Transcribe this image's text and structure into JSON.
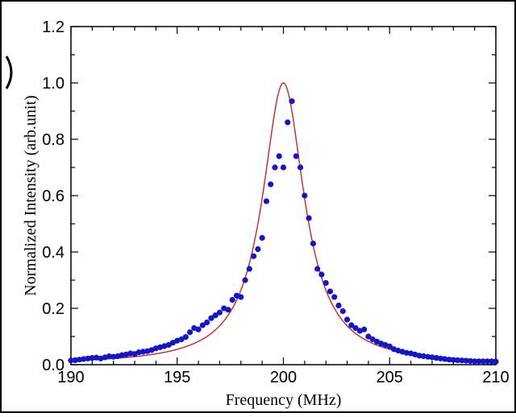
{
  "chart_data": {
    "type": "scatter",
    "title": "",
    "xlabel": "Frequency (MHz)",
    "ylabel": "Normalized Intensity (arb.unit)",
    "xlim": [
      190,
      210
    ],
    "ylim": [
      0.0,
      1.2
    ],
    "xticks": [
      190,
      195,
      200,
      205,
      210
    ],
    "xtick_labels": [
      "190",
      "195",
      "200",
      "205",
      "210"
    ],
    "yticks": [
      0.0,
      0.2,
      0.4,
      0.6,
      0.8,
      1.0,
      1.2
    ],
    "ytick_labels": [
      "0.0",
      "0.2",
      "0.4",
      "0.6",
      "0.8",
      "1.0",
      "1.2"
    ],
    "grid": false,
    "legend": "none",
    "colors": {
      "points": "#1515c8",
      "curve": "#c83232",
      "axes": "#000000"
    },
    "fit_curve": {
      "kind": "lorentzian",
      "center": 200.0,
      "hwhm": 1.2,
      "amplitude": 1.0
    },
    "points": [
      [
        190.0,
        0.015
      ],
      [
        190.2,
        0.016
      ],
      [
        190.4,
        0.018
      ],
      [
        190.6,
        0.02
      ],
      [
        190.8,
        0.022
      ],
      [
        191.0,
        0.024
      ],
      [
        191.2,
        0.025
      ],
      [
        191.4,
        0.022
      ],
      [
        191.6,
        0.026
      ],
      [
        191.8,
        0.03
      ],
      [
        192.0,
        0.028
      ],
      [
        192.2,
        0.03
      ],
      [
        192.4,
        0.034
      ],
      [
        192.6,
        0.036
      ],
      [
        192.8,
        0.04
      ],
      [
        193.0,
        0.038
      ],
      [
        193.2,
        0.044
      ],
      [
        193.4,
        0.046
      ],
      [
        193.6,
        0.048
      ],
      [
        193.8,
        0.052
      ],
      [
        194.0,
        0.058
      ],
      [
        194.2,
        0.062
      ],
      [
        194.4,
        0.066
      ],
      [
        194.6,
        0.07
      ],
      [
        194.8,
        0.078
      ],
      [
        195.0,
        0.085
      ],
      [
        195.2,
        0.09
      ],
      [
        195.4,
        0.098
      ],
      [
        195.6,
        0.115
      ],
      [
        195.8,
        0.13
      ],
      [
        196.0,
        0.125
      ],
      [
        196.2,
        0.14
      ],
      [
        196.4,
        0.15
      ],
      [
        196.6,
        0.165
      ],
      [
        196.8,
        0.175
      ],
      [
        197.0,
        0.185
      ],
      [
        197.2,
        0.2
      ],
      [
        197.4,
        0.195
      ],
      [
        197.6,
        0.23
      ],
      [
        197.8,
        0.245
      ],
      [
        198.0,
        0.24
      ],
      [
        198.2,
        0.3
      ],
      [
        198.4,
        0.34
      ],
      [
        198.6,
        0.385
      ],
      [
        198.8,
        0.41
      ],
      [
        199.0,
        0.45
      ],
      [
        199.2,
        0.58
      ],
      [
        199.4,
        0.64
      ],
      [
        199.6,
        0.7
      ],
      [
        199.8,
        0.74
      ],
      [
        200.0,
        0.7
      ],
      [
        200.2,
        0.86
      ],
      [
        200.4,
        0.935
      ],
      [
        200.6,
        0.74
      ],
      [
        200.8,
        0.7
      ],
      [
        201.0,
        0.6
      ],
      [
        201.2,
        0.52
      ],
      [
        201.4,
        0.43
      ],
      [
        201.6,
        0.34
      ],
      [
        201.8,
        0.32
      ],
      [
        202.0,
        0.29
      ],
      [
        202.2,
        0.26
      ],
      [
        202.4,
        0.24
      ],
      [
        202.6,
        0.21
      ],
      [
        202.8,
        0.19
      ],
      [
        203.0,
        0.16
      ],
      [
        203.2,
        0.14
      ],
      [
        203.4,
        0.13
      ],
      [
        203.6,
        0.12
      ],
      [
        203.8,
        0.125
      ],
      [
        204.0,
        0.1
      ],
      [
        204.2,
        0.09
      ],
      [
        204.4,
        0.082
      ],
      [
        204.6,
        0.075
      ],
      [
        204.8,
        0.07
      ],
      [
        205.0,
        0.065
      ],
      [
        205.2,
        0.055
      ],
      [
        205.4,
        0.05
      ],
      [
        205.6,
        0.046
      ],
      [
        205.8,
        0.042
      ],
      [
        206.0,
        0.04
      ],
      [
        206.2,
        0.036
      ],
      [
        206.4,
        0.032
      ],
      [
        206.6,
        0.03
      ],
      [
        206.8,
        0.028
      ],
      [
        207.0,
        0.026
      ],
      [
        207.2,
        0.024
      ],
      [
        207.4,
        0.022
      ],
      [
        207.6,
        0.02
      ],
      [
        207.8,
        0.018
      ],
      [
        208.0,
        0.017
      ],
      [
        208.2,
        0.016
      ],
      [
        208.4,
        0.015
      ],
      [
        208.6,
        0.014
      ],
      [
        208.8,
        0.013
      ],
      [
        209.0,
        0.012
      ],
      [
        209.2,
        0.012
      ],
      [
        209.4,
        0.012
      ],
      [
        209.6,
        0.012
      ],
      [
        209.8,
        0.012
      ],
      [
        210.0,
        0.011
      ]
    ]
  }
}
